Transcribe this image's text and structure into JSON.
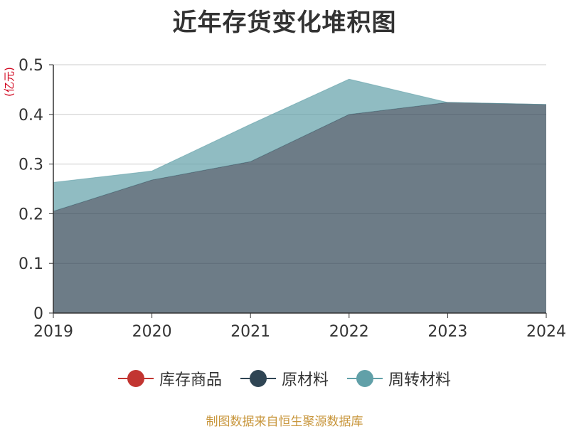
{
  "chart_data": {
    "type": "area",
    "stacked": true,
    "title": "近年存货变化堆积图",
    "ylabel": "(亿元)",
    "xlabel": "",
    "categories": [
      "2019",
      "2020",
      "2021",
      "2022",
      "2023",
      "2024"
    ],
    "ylim": [
      0,
      0.5
    ],
    "yticks": [
      "0",
      "0.1",
      "0.2",
      "0.3",
      "0.4",
      "0.5"
    ],
    "grid": true,
    "legend_position": "bottom",
    "series": [
      {
        "name": "库存商品",
        "color": "#c23531",
        "values": [
          0,
          0,
          0,
          0,
          0,
          0
        ]
      },
      {
        "name": "原材料",
        "color": "#2f4554",
        "values": [
          0.205,
          0.268,
          0.305,
          0.4,
          0.424,
          0.42
        ]
      },
      {
        "name": "周转材料",
        "color": "#61a0a8",
        "values": [
          0.058,
          0.018,
          0.075,
          0.071,
          0.0,
          0.0
        ]
      }
    ]
  },
  "source_text": "制图数据来自恒生聚源数据库"
}
